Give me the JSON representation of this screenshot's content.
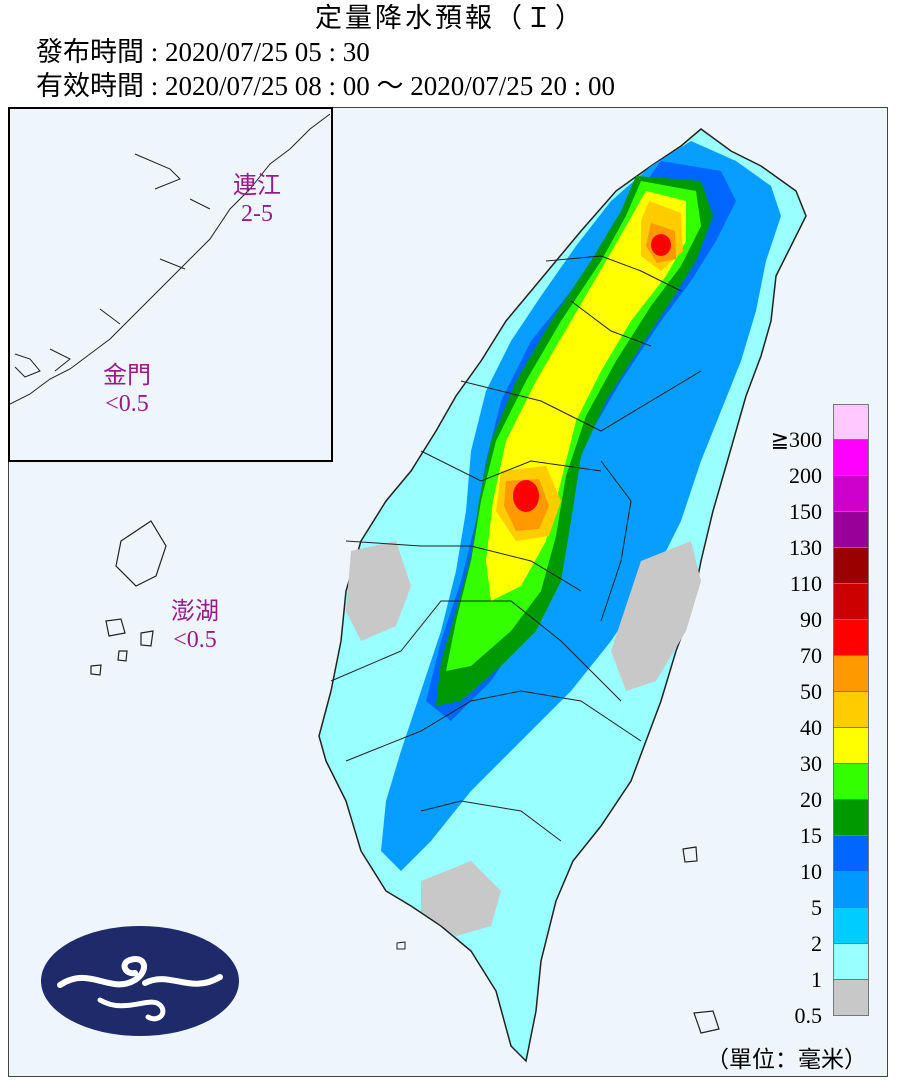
{
  "header": {
    "title": "定量降水預報（Ｉ）",
    "issued": "發布時間 : 2020/07/25 05 : 30",
    "valid": "有效時間 : 2020/07/25 08 : 00 ～ 2020/07/25 20 : 00"
  },
  "islands": [
    {
      "name": "連江",
      "value": "2-5"
    },
    {
      "name": "金門",
      "value": "<0.5"
    },
    {
      "name": "澎湖",
      "value": "<0.5"
    }
  ],
  "legend": {
    "colors": [
      "#ffc8ff",
      "#ff00ff",
      "#cc00cc",
      "#990099",
      "#990000",
      "#cc0000",
      "#ff0000",
      "#ff9900",
      "#ffcc00",
      "#ffff00",
      "#33ff00",
      "#009900",
      "#0066ff",
      "#0099ff",
      "#00ccff",
      "#99ffff",
      "#c8c8c8"
    ],
    "labels": [
      "≧300",
      "200",
      "150",
      "130",
      "110",
      "90",
      "70",
      "50",
      "40",
      "30",
      "20",
      "15",
      "10",
      "5",
      "2",
      "1",
      "0.5"
    ],
    "unit": "（單位：毫米）"
  },
  "icons": {
    "logo": "cwb-logo-icon"
  }
}
